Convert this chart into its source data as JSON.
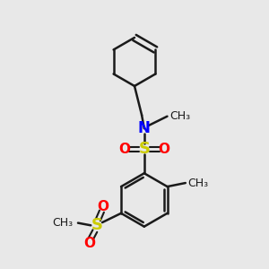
{
  "bg_color": "#e8e8e8",
  "bond_color": "#1a1a1a",
  "N_color": "#0000ff",
  "S_color": "#cccc00",
  "O_color": "#ff0000",
  "line_width": 1.8,
  "font_size": 11,
  "xlim": [
    0,
    10
  ],
  "ylim": [
    0,
    11
  ]
}
